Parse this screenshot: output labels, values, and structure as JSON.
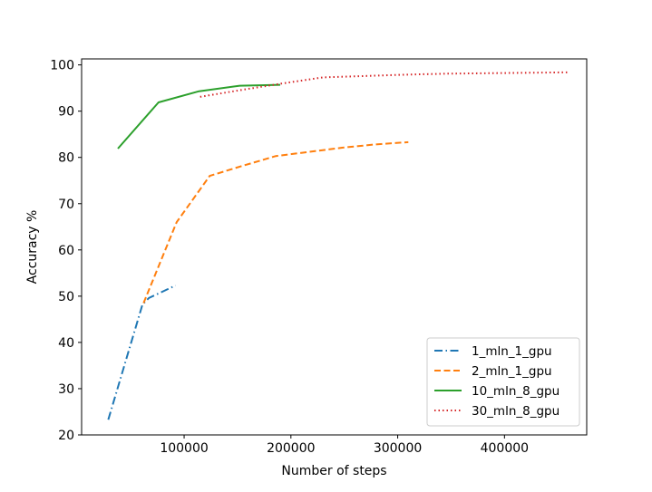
{
  "chart_data": {
    "type": "line",
    "title": "",
    "xlabel": "Number of steps",
    "ylabel": "Accuracy %",
    "xlim": [
      4000,
      477000
    ],
    "ylim": [
      20,
      101.3
    ],
    "xticks": [
      100000,
      200000,
      300000,
      400000
    ],
    "xtick_labels": [
      "100000",
      "200000",
      "300000",
      "400000"
    ],
    "yticks": [
      20,
      30,
      40,
      50,
      60,
      70,
      80,
      90,
      100
    ],
    "ytick_labels": [
      "20",
      "30",
      "40",
      "50",
      "60",
      "70",
      "80",
      "90",
      "100"
    ],
    "grid": false,
    "legend_position": "lower-right",
    "series": [
      {
        "name": "1_mln_1_gpu",
        "color": "#1f77b4",
        "linestyle": "dashdot",
        "x": [
          29000,
          61000,
          67000,
          92000
        ],
        "y": [
          23.3,
          48.2,
          49.6,
          52.3
        ]
      },
      {
        "name": "2_mln_1_gpu",
        "color": "#ff7f0e",
        "linestyle": "dashed",
        "x": [
          62000,
          93000,
          124000,
          155000,
          186000,
          217000,
          248000,
          279000,
          310000
        ],
        "y": [
          48.5,
          66.0,
          76.0,
          78.2,
          80.3,
          81.2,
          82.1,
          82.8,
          83.3
        ]
      },
      {
        "name": "10_mln_8_gpu",
        "color": "#2ca02c",
        "linestyle": "solid",
        "x": [
          38000,
          76000,
          114000,
          152000,
          190000
        ],
        "y": [
          81.9,
          91.9,
          94.3,
          95.5,
          95.7
        ]
      },
      {
        "name": "30_mln_8_gpu",
        "color": "#d62728",
        "linestyle": "dotted",
        "x": [
          115000,
          154000,
          192000,
          230000,
          269000,
          307000,
          346000,
          384000,
          423000,
          461000
        ],
        "y": [
          93.1,
          94.6,
          96.0,
          97.3,
          97.6,
          97.9,
          98.1,
          98.2,
          98.3,
          98.4
        ]
      }
    ]
  }
}
